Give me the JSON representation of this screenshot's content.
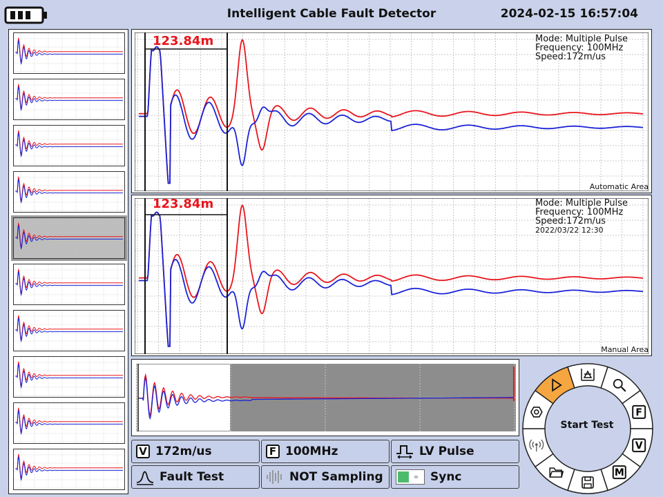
{
  "header": {
    "title": "Intelligent Cable Fault Detector",
    "datetime": "2024-02-15 16:57:04",
    "battery_icon": "battery-icon"
  },
  "colors": {
    "red_trace": "#e8141c",
    "blue_trace": "#1a22d6",
    "accent": "#f6a640",
    "panel_bg": "#c9d2ea"
  },
  "auto_panel": {
    "measurement": "123.84m",
    "mode": "Mode: Multiple Pulse",
    "frequency": "Frequency: 100MHz",
    "speed": "Speed:172m/us",
    "area_label": "Automatic Area"
  },
  "manual_panel": {
    "measurement": "123.84m",
    "mode": "Mode: Multiple Pulse",
    "frequency": "Frequency: 100MHz",
    "speed": "Speed:172m/us",
    "date": "2022/03/22 12:30",
    "area_label": "Manual Area"
  },
  "thumbnails": {
    "count": 10,
    "selected_index": 4
  },
  "status_buttons": {
    "speed": {
      "key": "V",
      "label": "172m/us"
    },
    "frequency": {
      "key": "F",
      "label": "100MHz"
    },
    "pulse": {
      "label": "LV Pulse",
      "icon": "pulse-icon"
    },
    "fault_test": {
      "label": "Fault Test",
      "icon": "fault-wave-icon"
    },
    "sampling": {
      "label": "NOT Sampling",
      "icon": "sampling-icon"
    },
    "sync": {
      "label": "Sync",
      "icon": "toggle-icon"
    }
  },
  "dial": {
    "center_label": "Start Test",
    "segment_keys": {
      "frequency": "F",
      "speed": "V",
      "menu": "M"
    },
    "icons": [
      "cursor-level-icon",
      "search-icon",
      "frequency-icon",
      "speed-icon",
      "menu-icon",
      "save-icon",
      "folder-icon",
      "wireless-icon",
      "settings-icon",
      "play-icon"
    ]
  }
}
